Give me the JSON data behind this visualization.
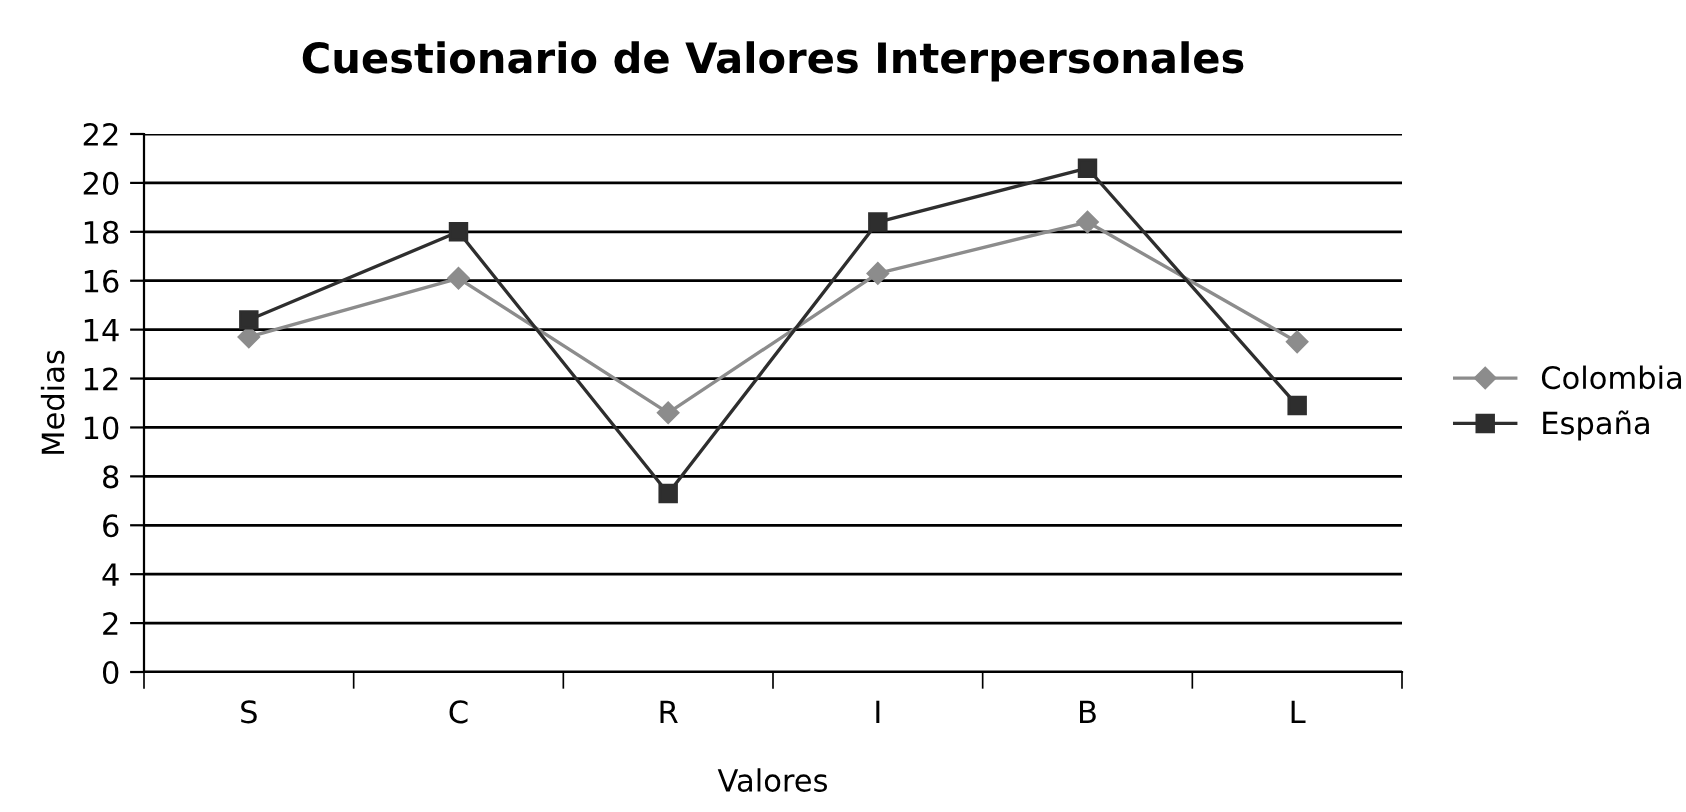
{
  "chart_data": {
    "type": "line",
    "title": "Cuestionario de Valores Interpersonales",
    "xlabel": "Valores",
    "ylabel": "Medias",
    "categories": [
      "S",
      "C",
      "R",
      "I",
      "B",
      "L"
    ],
    "series": [
      {
        "name": "Colombia",
        "color": "#8c8c8c",
        "marker": "diamond",
        "values": [
          13.7,
          16.1,
          10.6,
          16.3,
          18.4,
          13.5
        ]
      },
      {
        "name": "España",
        "color": "#2e2e2e",
        "marker": "square",
        "values": [
          14.4,
          18.0,
          7.3,
          18.4,
          20.6,
          10.9
        ]
      }
    ],
    "ylim": [
      0,
      22
    ],
    "yticks": [
      0,
      2,
      4,
      6,
      8,
      10,
      12,
      14,
      16,
      18,
      20,
      22
    ],
    "grid": "y",
    "legend": "right"
  }
}
